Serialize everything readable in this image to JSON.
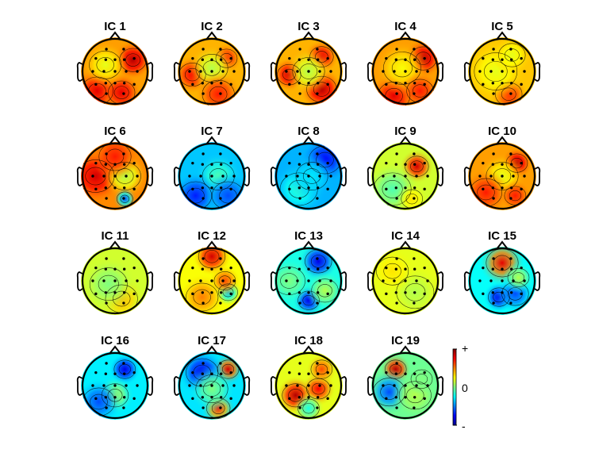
{
  "figure": {
    "description_type": "ICA component scalp topographies",
    "colormap": [
      "#00008f",
      "#0000ff",
      "#0080ff",
      "#00ffff",
      "#80ff80",
      "#ffff00",
      "#ff8000",
      "#ff0000",
      "#800000"
    ]
  },
  "components": [
    {
      "label": "IC 1",
      "base": 0.72,
      "blobs": [
        [
          0.55,
          -0.35,
          0.95,
          0.25
        ],
        [
          -0.55,
          0.6,
          0.9,
          0.3
        ],
        [
          0.2,
          0.65,
          0.9,
          0.25
        ],
        [
          -0.3,
          -0.2,
          0.6,
          0.3
        ]
      ]
    },
    {
      "label": "IC 2",
      "base": 0.7,
      "blobs": [
        [
          -0.6,
          0.1,
          0.88,
          0.25
        ],
        [
          0.45,
          -0.4,
          0.85,
          0.2
        ],
        [
          0.0,
          -0.1,
          0.55,
          0.3
        ],
        [
          0.2,
          0.7,
          0.85,
          0.3
        ]
      ]
    },
    {
      "label": "IC 3",
      "base": 0.7,
      "blobs": [
        [
          -0.6,
          0.1,
          0.92,
          0.22
        ],
        [
          0.4,
          -0.45,
          0.9,
          0.22
        ],
        [
          0.4,
          0.55,
          0.95,
          0.28
        ],
        [
          0.0,
          0.0,
          0.55,
          0.3
        ]
      ]
    },
    {
      "label": "IC 4",
      "base": 0.72,
      "blobs": [
        [
          0.55,
          -0.4,
          0.95,
          0.25
        ],
        [
          -0.35,
          0.75,
          0.9,
          0.3
        ],
        [
          -0.1,
          -0.1,
          0.62,
          0.35
        ],
        [
          0.45,
          0.6,
          0.85,
          0.25
        ]
      ]
    },
    {
      "label": "IC 5",
      "base": 0.68,
      "blobs": [
        [
          0.2,
          0.7,
          0.85,
          0.25
        ],
        [
          -0.2,
          0.0,
          0.6,
          0.4
        ],
        [
          0.3,
          -0.5,
          0.6,
          0.25
        ]
      ]
    },
    {
      "label": "IC 6",
      "base": 0.74,
      "blobs": [
        [
          -0.6,
          0.0,
          0.92,
          0.35
        ],
        [
          0.3,
          0.0,
          0.55,
          0.3
        ],
        [
          0.3,
          0.7,
          0.2,
          0.15
        ],
        [
          0.0,
          -0.6,
          0.85,
          0.3
        ]
      ]
    },
    {
      "label": "IC 7",
      "base": 0.32,
      "blobs": [
        [
          0.2,
          0.0,
          0.45,
          0.3
        ],
        [
          -0.5,
          0.6,
          0.15,
          0.3
        ],
        [
          0.5,
          0.6,
          0.2,
          0.3
        ]
      ]
    },
    {
      "label": "IC 8",
      "base": 0.3,
      "blobs": [
        [
          0.5,
          -0.5,
          0.12,
          0.3
        ],
        [
          -0.3,
          0.4,
          0.42,
          0.35
        ],
        [
          0.1,
          0.0,
          0.35,
          0.3
        ]
      ]
    },
    {
      "label": "IC 9",
      "base": 0.58,
      "blobs": [
        [
          0.35,
          -0.3,
          0.92,
          0.22
        ],
        [
          -0.4,
          0.4,
          0.45,
          0.35
        ],
        [
          0.2,
          0.7,
          0.65,
          0.2
        ]
      ]
    },
    {
      "label": "IC 10",
      "base": 0.72,
      "blobs": [
        [
          0.45,
          -0.4,
          0.95,
          0.2
        ],
        [
          0.0,
          0.0,
          0.6,
          0.3
        ],
        [
          -0.5,
          0.5,
          0.85,
          0.3
        ],
        [
          0.4,
          0.6,
          0.85,
          0.2
        ]
      ]
    },
    {
      "label": "IC 11",
      "base": 0.58,
      "blobs": [
        [
          0.2,
          0.55,
          0.7,
          0.3
        ],
        [
          -0.2,
          0.1,
          0.5,
          0.35
        ]
      ]
    },
    {
      "label": "IC 12",
      "base": 0.62,
      "blobs": [
        [
          0.0,
          -0.75,
          0.92,
          0.25
        ],
        [
          0.5,
          0.35,
          0.3,
          0.18
        ],
        [
          -0.3,
          0.5,
          0.75,
          0.3
        ],
        [
          0.4,
          0.0,
          0.8,
          0.2
        ]
      ]
    },
    {
      "label": "IC 13",
      "base": 0.4,
      "blobs": [
        [
          0.3,
          -0.6,
          0.1,
          0.25
        ],
        [
          0.0,
          0.6,
          0.1,
          0.2
        ],
        [
          -0.6,
          0.0,
          0.5,
          0.3
        ],
        [
          0.5,
          0.3,
          0.55,
          0.25
        ]
      ]
    },
    {
      "label": "IC 14",
      "base": 0.6,
      "blobs": [
        [
          0.3,
          0.35,
          0.55,
          0.35
        ],
        [
          -0.4,
          -0.3,
          0.65,
          0.3
        ]
      ]
    },
    {
      "label": "IC 15",
      "base": 0.38,
      "blobs": [
        [
          0.0,
          -0.55,
          0.9,
          0.3
        ],
        [
          -0.1,
          0.5,
          0.1,
          0.2
        ],
        [
          0.4,
          0.4,
          0.2,
          0.25
        ],
        [
          0.5,
          -0.1,
          0.55,
          0.2
        ]
      ]
    },
    {
      "label": "IC 16",
      "base": 0.36,
      "blobs": [
        [
          0.3,
          -0.5,
          0.1,
          0.2
        ],
        [
          0.0,
          0.3,
          0.55,
          0.25
        ],
        [
          -0.5,
          0.5,
          0.2,
          0.3
        ]
      ]
    },
    {
      "label": "IC 17",
      "base": 0.35,
      "blobs": [
        [
          0.5,
          -0.5,
          0.92,
          0.2
        ],
        [
          -0.3,
          -0.4,
          0.1,
          0.3
        ],
        [
          0.2,
          0.7,
          0.85,
          0.22
        ],
        [
          0.0,
          0.1,
          0.5,
          0.3
        ]
      ]
    },
    {
      "label": "IC 18",
      "base": 0.6,
      "blobs": [
        [
          -0.4,
          0.3,
          0.95,
          0.25
        ],
        [
          0.3,
          0.1,
          0.88,
          0.22
        ],
        [
          0.4,
          -0.5,
          0.8,
          0.2
        ],
        [
          0.0,
          0.7,
          0.4,
          0.2
        ]
      ]
    },
    {
      "label": "IC 19",
      "base": 0.48,
      "blobs": [
        [
          -0.3,
          -0.5,
          0.95,
          0.2
        ],
        [
          -0.5,
          0.2,
          0.2,
          0.3
        ],
        [
          0.3,
          0.3,
          0.55,
          0.3
        ],
        [
          0.5,
          -0.2,
          0.5,
          0.2
        ]
      ]
    }
  ],
  "colorbar": {
    "top_label": "+",
    "mid_label": "0",
    "bottom_label": "-"
  }
}
